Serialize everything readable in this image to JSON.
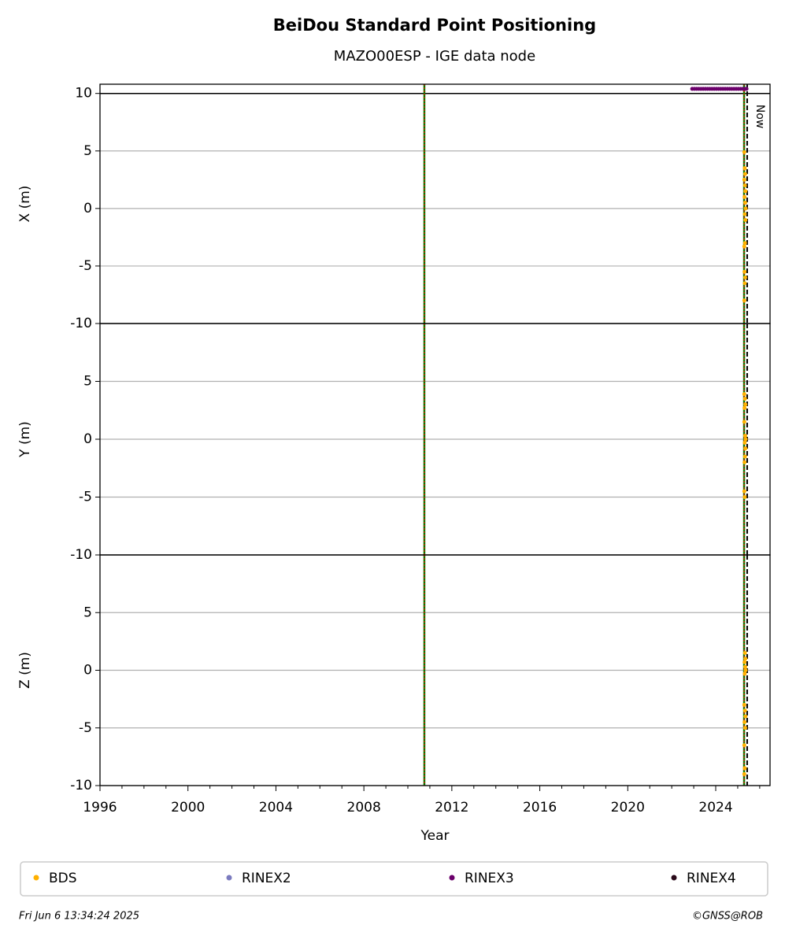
{
  "title": "BeiDou Standard Point Positioning",
  "subtitle": "MAZO00ESP - IGE data node",
  "footer": {
    "left": "Fri Jun  6 13:34:24 2025",
    "right": "©GNSS@ROB"
  },
  "chart_data": [
    {
      "type": "scatter",
      "ylabel": "X (m)",
      "ylim": [
        -10,
        10.8
      ],
      "yticks": [
        -10,
        -5,
        0,
        5,
        10
      ],
      "grid": true,
      "hlines": [
        10
      ],
      "xlim": [
        1996,
        2026.47
      ],
      "vlines": [
        {
          "x": 2010.75,
          "color": "#008000",
          "dash_color": "#ff0000"
        },
        {
          "x": 2025.29,
          "color": "#008000",
          "dash_color": "#ff0000"
        }
      ],
      "now": {
        "x": 2025.43,
        "label": "Now"
      },
      "series": [
        {
          "name": "BDS",
          "color": "#ffb000",
          "x": [
            2025.3,
            2025.32,
            2025.34,
            2025.3,
            2025.33,
            2025.35,
            2025.31,
            2025.34,
            2025.36,
            2025.32,
            2025.35,
            2025.33,
            2025.3,
            2025.31,
            2025.34,
            2025.32,
            2025.3
          ],
          "values": [
            4.9,
            3.5,
            3.0,
            2.5,
            2.0,
            1.5,
            1.0,
            0.5,
            0.0,
            -0.5,
            -1.0,
            -3.0,
            -3.3,
            -5.5,
            -6.0,
            -6.5,
            -8.0
          ]
        },
        {
          "name": "RINEX2",
          "color": "#7b7bbf",
          "x": [],
          "values": []
        },
        {
          "name": "RINEX3",
          "color": "#6b006b",
          "x": [
            2022.93,
            2023.03,
            2023.13,
            2023.23,
            2023.33,
            2023.43,
            2023.53,
            2023.63,
            2023.73,
            2023.83,
            2023.93,
            2024.03,
            2024.13,
            2024.23,
            2024.33,
            2024.43,
            2024.53,
            2024.63,
            2024.73,
            2024.83,
            2024.93,
            2025.03,
            2025.13,
            2025.23,
            2025.33,
            2025.4
          ],
          "values": [
            10.4,
            10.4,
            10.4,
            10.4,
            10.4,
            10.4,
            10.4,
            10.4,
            10.4,
            10.4,
            10.4,
            10.4,
            10.4,
            10.4,
            10.4,
            10.4,
            10.4,
            10.4,
            10.4,
            10.4,
            10.4,
            10.4,
            10.4,
            10.4,
            10.4,
            10.4
          ]
        },
        {
          "name": "RINEX4",
          "color": "#2a0a1a",
          "x": [],
          "values": []
        }
      ]
    },
    {
      "type": "scatter",
      "ylabel": "Y (m)",
      "ylim": [
        -10,
        10
      ],
      "yticks": [
        -10,
        -5,
        0,
        5
      ],
      "grid": true,
      "series": [
        {
          "color": "#ffb000",
          "x": [
            2025.3,
            2025.33,
            2025.35,
            2025.31,
            2025.3,
            2025.34,
            2025.36,
            2025.32,
            2025.35,
            2025.33,
            2025.31,
            2025.3,
            2025.32
          ],
          "values": [
            3.9,
            3.5,
            3.0,
            2.7,
            1.5,
            0.3,
            0.0,
            -0.3,
            -0.8,
            -1.5,
            -2.0,
            -4.5,
            -5.0
          ]
        }
      ]
    },
    {
      "type": "scatter",
      "ylabel": "Z (m)",
      "ylim": [
        -10,
        10
      ],
      "yticks": [
        -10,
        -5,
        0,
        5
      ],
      "grid": true,
      "xlabel": "Year",
      "xticks": [
        1996,
        2000,
        2004,
        2008,
        2012,
        2016,
        2020,
        2024
      ],
      "xminorticks": [
        1997,
        1998,
        1999,
        2001,
        2002,
        2003,
        2005,
        2006,
        2007,
        2009,
        2010,
        2011,
        2013,
        2014,
        2015,
        2017,
        2018,
        2019,
        2021,
        2022,
        2023,
        2025,
        2026
      ],
      "series": [
        {
          "color": "#ffb000",
          "x": [
            2025.33,
            2025.35,
            2025.31,
            2025.34,
            2025.36,
            2025.32,
            2025.3,
            2025.33,
            2025.35,
            2025.31,
            2025.34,
            2025.3,
            2025.32,
            2025.3
          ],
          "values": [
            1.5,
            1.0,
            0.7,
            0.3,
            0.0,
            -0.3,
            -3.0,
            -3.5,
            -4.0,
            -4.5,
            -5.0,
            -6.5,
            -8.5,
            -9.0
          ]
        }
      ]
    }
  ]
}
